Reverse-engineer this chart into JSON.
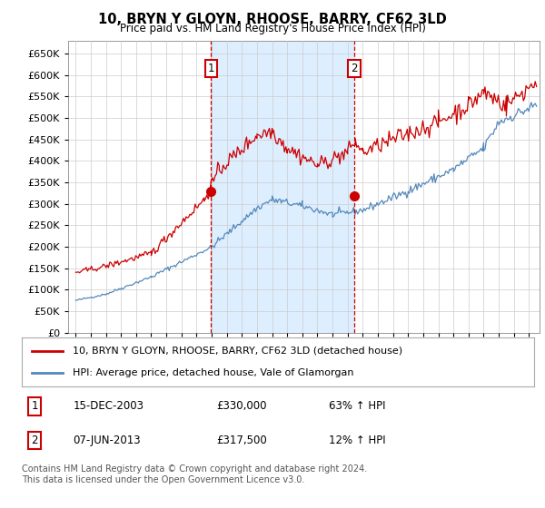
{
  "title": "10, BRYN Y GLOYN, RHOOSE, BARRY, CF62 3LD",
  "subtitle": "Price paid vs. HM Land Registry's House Price Index (HPI)",
  "legend_line1": "10, BRYN Y GLOYN, RHOOSE, BARRY, CF62 3LD (detached house)",
  "legend_line2": "HPI: Average price, detached house, Vale of Glamorgan",
  "sale1_date": "15-DEC-2003",
  "sale1_price": 330000,
  "sale1_pct": "63%",
  "sale2_date": "07-JUN-2013",
  "sale2_price": 317500,
  "sale2_pct": "12%",
  "footer": "Contains HM Land Registry data © Crown copyright and database right 2024.\nThis data is licensed under the Open Government Licence v3.0.",
  "ylim": [
    0,
    680000
  ],
  "yticks": [
    0,
    50000,
    100000,
    150000,
    200000,
    250000,
    300000,
    350000,
    400000,
    450000,
    500000,
    550000,
    600000,
    650000
  ],
  "red_color": "#cc0000",
  "blue_color": "#5588bb",
  "shade_color": "#ddeeff",
  "sale1_x": 2003.96,
  "sale2_x": 2013.44,
  "plot_bg": "#ffffff",
  "fig_bg": "#ffffff",
  "grid_color": "#cccccc"
}
